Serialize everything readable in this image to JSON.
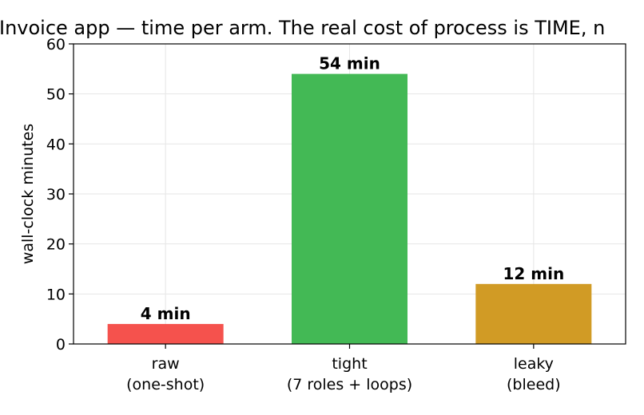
{
  "chart_data": {
    "type": "bar",
    "title": "Invoice app — time per arm. The real cost of process is TIME, n",
    "xlabel": "",
    "ylabel": "wall-clock minutes",
    "categories": [
      [
        "raw",
        "(one-shot)"
      ],
      [
        "tight",
        "(7 roles + loops)"
      ],
      [
        "leaky",
        "(bleed)"
      ]
    ],
    "values": [
      4,
      54,
      12
    ],
    "data_labels": [
      "4 min",
      "54 min",
      "12 min"
    ],
    "colors": [
      "#f5524d",
      "#43b955",
      "#d19b25"
    ],
    "ylim": [
      0,
      60
    ],
    "yticks": [
      0,
      10,
      20,
      30,
      40,
      50,
      60
    ],
    "grid": true
  }
}
